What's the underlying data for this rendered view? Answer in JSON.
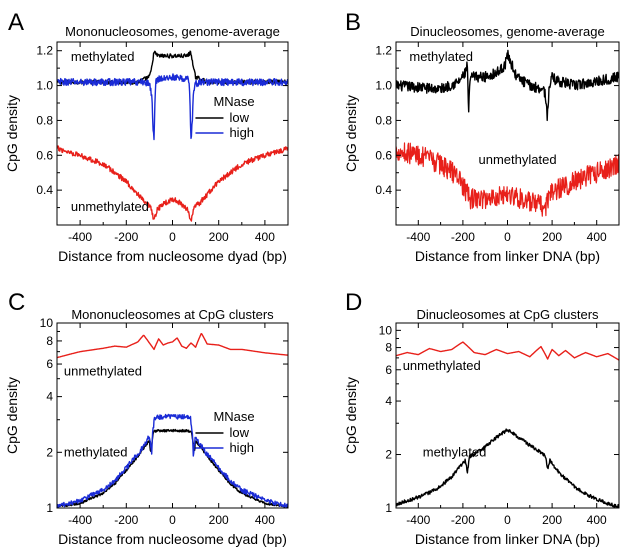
{
  "colors": {
    "black": "#000000",
    "blue": "#1a2bd6",
    "red": "#e8201a"
  },
  "chart_data": [
    {
      "letter": "A",
      "type": "line",
      "title": "Mononucleosomes, genome-average",
      "xlabel": "Distance from nucleosome dyad (bp)",
      "ylabel": "CpG density",
      "xlim": [
        -500,
        500
      ],
      "ylim": [
        0.2,
        1.25
      ],
      "yscale": "linear",
      "xticks": [
        -400,
        -200,
        0,
        200,
        400
      ],
      "yticks": [
        0.4,
        0.6,
        0.8,
        1.0,
        1.2
      ],
      "xtick_labels": [
        "-400",
        "-200",
        "0",
        "200",
        "400"
      ],
      "ytick_labels": [
        "0.4",
        "0.6",
        "0.8",
        "1.0",
        "1.2"
      ],
      "annotations": [
        {
          "text": "methylated",
          "x": -440,
          "y": 1.14
        },
        {
          "text": "unmethylated",
          "x": -440,
          "y": 0.28
        }
      ],
      "legend": {
        "title": "MNase",
        "entries": [
          {
            "label": "low",
            "color": "#000000"
          },
          {
            "label": "high",
            "color": "#1a2bd6"
          }
        ],
        "position": "center-right"
      },
      "series": [
        {
          "color": "#000000",
          "noise": 0.012,
          "x": [
            -500,
            -300,
            -150,
            -100,
            -90,
            -82,
            -78,
            -72,
            -60,
            -30,
            0,
            30,
            60,
            72,
            78,
            82,
            90,
            100,
            150,
            300,
            500
          ],
          "y": [
            1.02,
            1.02,
            1.02,
            1.05,
            1.1,
            1.18,
            1.19,
            1.18,
            1.17,
            1.17,
            1.17,
            1.17,
            1.17,
            1.18,
            1.19,
            1.18,
            1.1,
            1.05,
            1.02,
            1.02,
            1.02
          ]
        },
        {
          "color": "#1a2bd6",
          "noise": 0.02,
          "x": [
            -500,
            -120,
            -100,
            -90,
            -85,
            -80,
            -76,
            -72,
            -65,
            -30,
            0,
            30,
            65,
            72,
            76,
            80,
            85,
            90,
            100,
            120,
            500
          ],
          "y": [
            1.02,
            1.02,
            1.01,
            0.95,
            0.78,
            0.68,
            0.9,
            1.02,
            1.04,
            1.04,
            1.05,
            1.04,
            1.04,
            1.02,
            0.9,
            0.68,
            0.78,
            0.95,
            1.01,
            1.02,
            1.02
          ]
        },
        {
          "color": "#e8201a",
          "noise": 0.015,
          "x": [
            -500,
            -400,
            -300,
            -200,
            -120,
            -95,
            -85,
            -80,
            -75,
            -65,
            -40,
            0,
            40,
            65,
            75,
            80,
            85,
            95,
            120,
            200,
            300,
            400,
            500
          ],
          "y": [
            0.64,
            0.6,
            0.55,
            0.45,
            0.33,
            0.3,
            0.25,
            0.22,
            0.25,
            0.29,
            0.32,
            0.35,
            0.32,
            0.29,
            0.25,
            0.22,
            0.25,
            0.3,
            0.33,
            0.45,
            0.55,
            0.6,
            0.64
          ]
        }
      ]
    },
    {
      "letter": "B",
      "type": "line",
      "title": "Dinucleosomes, genome-average",
      "xlabel": "Distance from linker DNA (bp)",
      "ylabel": "CpG density",
      "xlim": [
        -500,
        500
      ],
      "ylim": [
        0.2,
        1.25
      ],
      "yscale": "linear",
      "xticks": [
        -400,
        -200,
        0,
        200,
        400
      ],
      "yticks": [
        0.4,
        0.6,
        0.8,
        1.0,
        1.2
      ],
      "xtick_labels": [
        "-400",
        "-200",
        "0",
        "200",
        "400"
      ],
      "ytick_labels": [
        "0.4",
        "0.6",
        "0.8",
        "1.0",
        "1.2"
      ],
      "annotations": [
        {
          "text": "methylated",
          "x": -440,
          "y": 1.14
        },
        {
          "text": "unmethylated",
          "x": -130,
          "y": 0.55
        }
      ],
      "series": [
        {
          "color": "#000000",
          "noise": 0.03,
          "x": [
            -500,
            -300,
            -220,
            -190,
            -180,
            -175,
            -170,
            -160,
            -100,
            -40,
            -10,
            0,
            10,
            40,
            100,
            160,
            170,
            178,
            185,
            195,
            220,
            300,
            500
          ],
          "y": [
            1.0,
            0.98,
            1.02,
            1.07,
            1.12,
            0.82,
            1.0,
            1.05,
            1.05,
            1.08,
            1.12,
            1.18,
            1.15,
            1.05,
            1.0,
            0.98,
            0.95,
            0.82,
            0.95,
            1.05,
            1.03,
            1.0,
            1.05
          ]
        },
        {
          "color": "#e8201a",
          "noise": 0.06,
          "x": [
            -500,
            -400,
            -300,
            -220,
            -190,
            -170,
            -100,
            0,
            100,
            170,
            190,
            220,
            300,
            400,
            500
          ],
          "y": [
            0.63,
            0.6,
            0.55,
            0.48,
            0.4,
            0.35,
            0.35,
            0.38,
            0.33,
            0.3,
            0.38,
            0.4,
            0.45,
            0.5,
            0.55
          ]
        }
      ]
    },
    {
      "letter": "C",
      "type": "line",
      "title": "Mononucleosomes at CpG clusters",
      "xlabel": "Distance from nucleosome dyad (bp)",
      "ylabel": "CpG density",
      "xlim": [
        -500,
        500
      ],
      "ylim": [
        1,
        10
      ],
      "yscale": "log",
      "xticks": [
        -400,
        -200,
        0,
        200,
        400
      ],
      "yticks": [
        1,
        2,
        4,
        6,
        8,
        10
      ],
      "xtick_labels": [
        "-400",
        "-200",
        "0",
        "200",
        "400"
      ],
      "ytick_labels": [
        "1",
        "2",
        "4",
        "6",
        "8",
        "10"
      ],
      "annotations": [
        {
          "text": "unmethylated",
          "x": -470,
          "y": 5.2
        },
        {
          "text": "methylated",
          "x": -470,
          "y": 1.9
        }
      ],
      "legend": {
        "title": "MNase",
        "entries": [
          {
            "label": "low",
            "color": "#000000"
          },
          {
            "label": "high",
            "color": "#1a2bd6"
          }
        ],
        "position": "center-right"
      },
      "series": [
        {
          "color": "#e8201a",
          "noise": 0.0,
          "x": [
            -500,
            -400,
            -300,
            -250,
            -200,
            -150,
            -125,
            -100,
            -80,
            -60,
            -40,
            -20,
            0,
            20,
            40,
            60,
            80,
            100,
            125,
            150,
            200,
            250,
            300,
            400,
            500
          ],
          "y": [
            6.5,
            7.0,
            7.3,
            7.5,
            7.4,
            7.9,
            8.6,
            7.8,
            7.2,
            8.2,
            7.6,
            7.8,
            7.9,
            8.3,
            7.5,
            7.3,
            7.8,
            7.4,
            8.8,
            7.7,
            7.6,
            7.2,
            7.2,
            6.9,
            6.7
          ]
        },
        {
          "color": "#000000",
          "noise": 0.01,
          "x": [
            -500,
            -400,
            -300,
            -250,
            -200,
            -150,
            -120,
            -100,
            -95,
            -88,
            -82,
            -75,
            -50,
            0,
            50,
            75,
            82,
            88,
            95,
            100,
            120,
            150,
            200,
            250,
            300,
            400,
            500
          ],
          "y": [
            1.02,
            1.06,
            1.2,
            1.35,
            1.6,
            1.9,
            2.15,
            2.3,
            2.0,
            2.3,
            2.6,
            2.6,
            2.62,
            2.62,
            2.62,
            2.6,
            2.6,
            2.3,
            2.0,
            2.3,
            2.15,
            1.9,
            1.6,
            1.35,
            1.2,
            1.06,
            1.02
          ]
        },
        {
          "color": "#1a2bd6",
          "noise": 0.02,
          "x": [
            -500,
            -400,
            -300,
            -250,
            -200,
            -150,
            -120,
            -100,
            -95,
            -90,
            -86,
            -82,
            -78,
            -70,
            -40,
            0,
            40,
            70,
            78,
            82,
            86,
            90,
            95,
            100,
            120,
            150,
            200,
            250,
            300,
            400,
            500
          ],
          "y": [
            1.02,
            1.1,
            1.25,
            1.4,
            1.65,
            1.95,
            2.2,
            2.45,
            2.2,
            1.95,
            2.5,
            2.8,
            3.05,
            3.1,
            3.12,
            3.12,
            3.12,
            3.1,
            3.05,
            2.8,
            2.5,
            1.95,
            2.2,
            2.45,
            2.2,
            1.95,
            1.65,
            1.4,
            1.25,
            1.1,
            1.02
          ]
        }
      ]
    },
    {
      "letter": "D",
      "type": "line",
      "title": "Dinucleosomes at CpG clusters",
      "xlabel": "Distance from linker DNA (bp)",
      "ylabel": "CpG density",
      "xlim": [
        -500,
        500
      ],
      "ylim": [
        1,
        11
      ],
      "yscale": "log",
      "xticks": [
        -400,
        -200,
        0,
        200,
        400
      ],
      "yticks": [
        1,
        2,
        4,
        6,
        8,
        10
      ],
      "xtick_labels": [
        "-400",
        "-200",
        "0",
        "200",
        "400"
      ],
      "ytick_labels": [
        "1",
        "2",
        "4",
        "6",
        "8",
        "10"
      ],
      "annotations": [
        {
          "text": "unmethylated",
          "x": -470,
          "y": 6.0
        },
        {
          "text": "methylated",
          "x": -380,
          "y": 1.95
        }
      ],
      "series": [
        {
          "color": "#e8201a",
          "noise": 0.0,
          "x": [
            -500,
            -450,
            -400,
            -350,
            -300,
            -250,
            -200,
            -150,
            -100,
            -50,
            0,
            50,
            100,
            150,
            180,
            200,
            230,
            260,
            300,
            350,
            400,
            450,
            500
          ],
          "y": [
            7.2,
            7.5,
            7.3,
            7.9,
            7.6,
            7.8,
            8.6,
            7.5,
            7.3,
            7.8,
            7.4,
            7.6,
            7.1,
            8.1,
            6.9,
            7.8,
            7.2,
            7.7,
            7.0,
            7.5,
            7.1,
            7.4,
            6.8
          ]
        },
        {
          "color": "#000000",
          "noise": 0.015,
          "x": [
            -500,
            -450,
            -400,
            -350,
            -300,
            -250,
            -210,
            -190,
            -180,
            -170,
            -150,
            -100,
            -50,
            0,
            50,
            100,
            150,
            170,
            180,
            190,
            210,
            250,
            300,
            350,
            400,
            450,
            500
          ],
          "y": [
            1.05,
            1.1,
            1.15,
            1.22,
            1.32,
            1.5,
            1.72,
            1.85,
            1.6,
            1.95,
            2.0,
            2.2,
            2.5,
            2.75,
            2.5,
            2.25,
            2.05,
            1.95,
            1.65,
            1.85,
            1.7,
            1.5,
            1.32,
            1.2,
            1.12,
            1.06,
            1.02
          ]
        }
      ]
    }
  ]
}
